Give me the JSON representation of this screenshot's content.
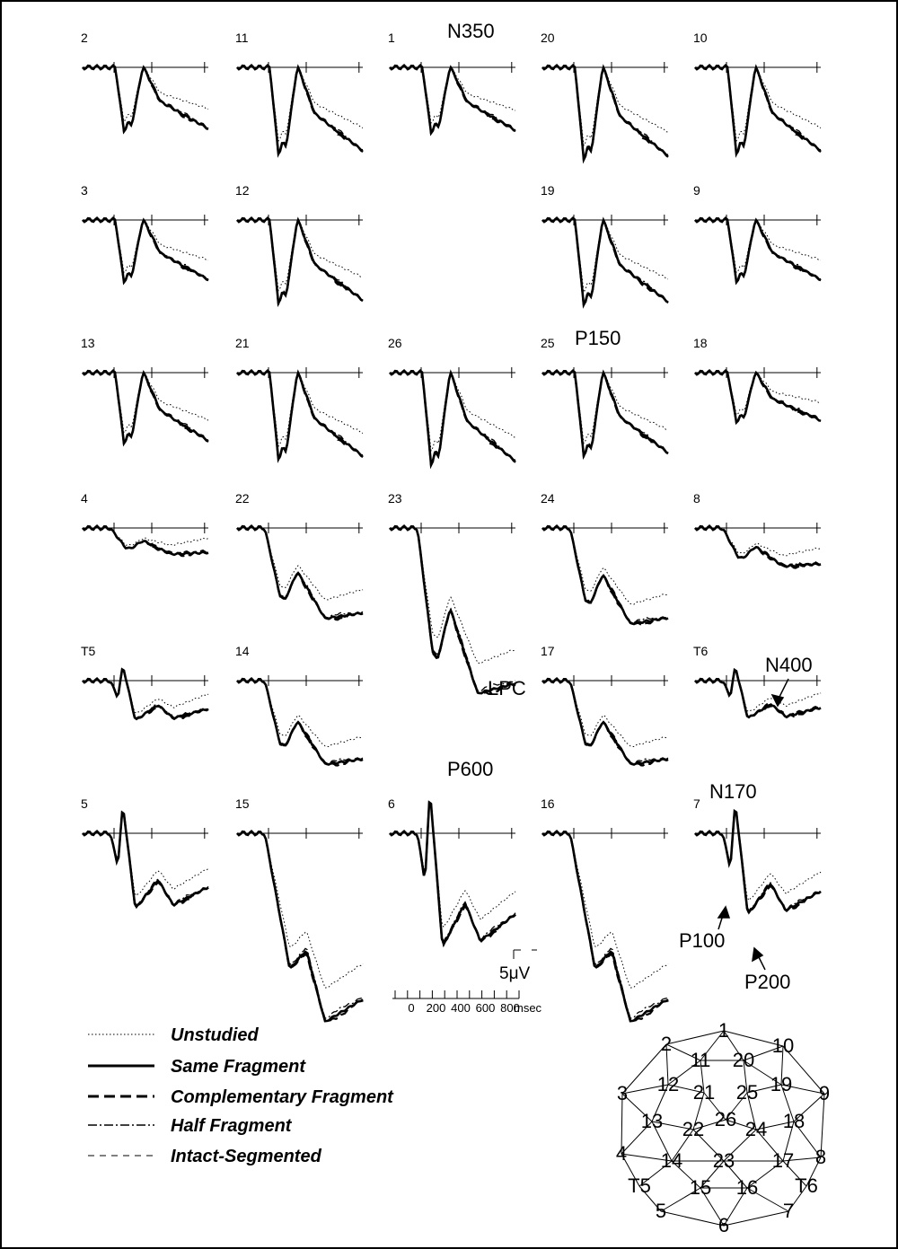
{
  "chart_data": {
    "type": "line",
    "title": "",
    "xlabel": "msec",
    "ylabel": "",
    "x_ticks": [
      "0",
      "200",
      "400",
      "600",
      "800"
    ],
    "x_unit": "msec",
    "scale_bar_label": "5μV",
    "legend": [
      {
        "name": "Unstudied",
        "style": "dotted"
      },
      {
        "name": "Same Fragment",
        "style": "solid"
      },
      {
        "name": "Complementary Fragment",
        "style": "long-dash"
      },
      {
        "name": "Half Fragment",
        "style": "dash-dot"
      },
      {
        "name": "Intact-Segmented",
        "style": "short-dash"
      }
    ],
    "panels": [
      {
        "label": "2",
        "row": 0,
        "col": 0,
        "type": "A",
        "depth": 72
      },
      {
        "label": "11",
        "row": 0,
        "col": 1,
        "type": "A",
        "depth": 98
      },
      {
        "label": "1",
        "row": 0,
        "col": 2,
        "type": "A",
        "depth": 74
      },
      {
        "label": "20",
        "row": 0,
        "col": 3,
        "type": "A",
        "depth": 104
      },
      {
        "label": "10",
        "row": 0,
        "col": 4,
        "type": "A",
        "depth": 98
      },
      {
        "label": "3",
        "row": 1,
        "col": 0,
        "type": "A",
        "depth": 70
      },
      {
        "label": "12",
        "row": 1,
        "col": 1,
        "type": "A",
        "depth": 94
      },
      {
        "label": "19",
        "row": 1,
        "col": 3,
        "type": "A",
        "depth": 96
      },
      {
        "label": "9",
        "row": 1,
        "col": 4,
        "type": "A",
        "depth": 70
      },
      {
        "label": "13",
        "row": 2,
        "col": 0,
        "type": "A",
        "depth": 80
      },
      {
        "label": "21",
        "row": 2,
        "col": 1,
        "type": "A",
        "depth": 98
      },
      {
        "label": "26",
        "row": 2,
        "col": 2,
        "type": "A",
        "depth": 104
      },
      {
        "label": "25",
        "row": 2,
        "col": 3,
        "type": "A",
        "depth": 94
      },
      {
        "label": "18",
        "row": 2,
        "col": 4,
        "type": "A",
        "depth": 56
      },
      {
        "label": "4",
        "row": 3,
        "col": 0,
        "type": "B",
        "depth": 30
      },
      {
        "label": "22",
        "row": 3,
        "col": 1,
        "type": "B",
        "depth": 104
      },
      {
        "label": "23",
        "row": 3,
        "col": 2,
        "type": "B",
        "depth": 190
      },
      {
        "label": "24",
        "row": 3,
        "col": 3,
        "type": "B",
        "depth": 110
      },
      {
        "label": "8",
        "row": 3,
        "col": 4,
        "type": "B",
        "depth": 44
      },
      {
        "label": "T5",
        "row": 4,
        "col": 0,
        "type": "C",
        "depth": 42
      },
      {
        "label": "14",
        "row": 4,
        "col": 1,
        "type": "B",
        "depth": 96
      },
      {
        "label": "17",
        "row": 4,
        "col": 3,
        "type": "B",
        "depth": 96
      },
      {
        "label": "T6",
        "row": 4,
        "col": 4,
        "type": "C",
        "depth": 40
      },
      {
        "label": "5",
        "row": 5,
        "col": 0,
        "type": "C",
        "depth": 80
      },
      {
        "label": "15",
        "row": 5,
        "col": 1,
        "type": "D",
        "depth": 210
      },
      {
        "label": "6",
        "row": 5,
        "col": 2,
        "type": "C",
        "depth": 120
      },
      {
        "label": "16",
        "row": 5,
        "col": 3,
        "type": "D",
        "depth": 210
      },
      {
        "label": "7",
        "row": 5,
        "col": 4,
        "type": "C",
        "depth": 86
      }
    ],
    "annotations": [
      "N350",
      "P150",
      "LPC",
      "P600",
      "N400",
      "N170",
      "P100",
      "P200"
    ],
    "electrode_map": [
      "1",
      "2",
      "10",
      "11",
      "20",
      "3",
      "12",
      "21",
      "25",
      "19",
      "9",
      "13",
      "22",
      "26",
      "24",
      "18",
      "4",
      "14",
      "23",
      "17",
      "8",
      "T5",
      "15",
      "16",
      "T6",
      "5",
      "7",
      "6"
    ]
  }
}
